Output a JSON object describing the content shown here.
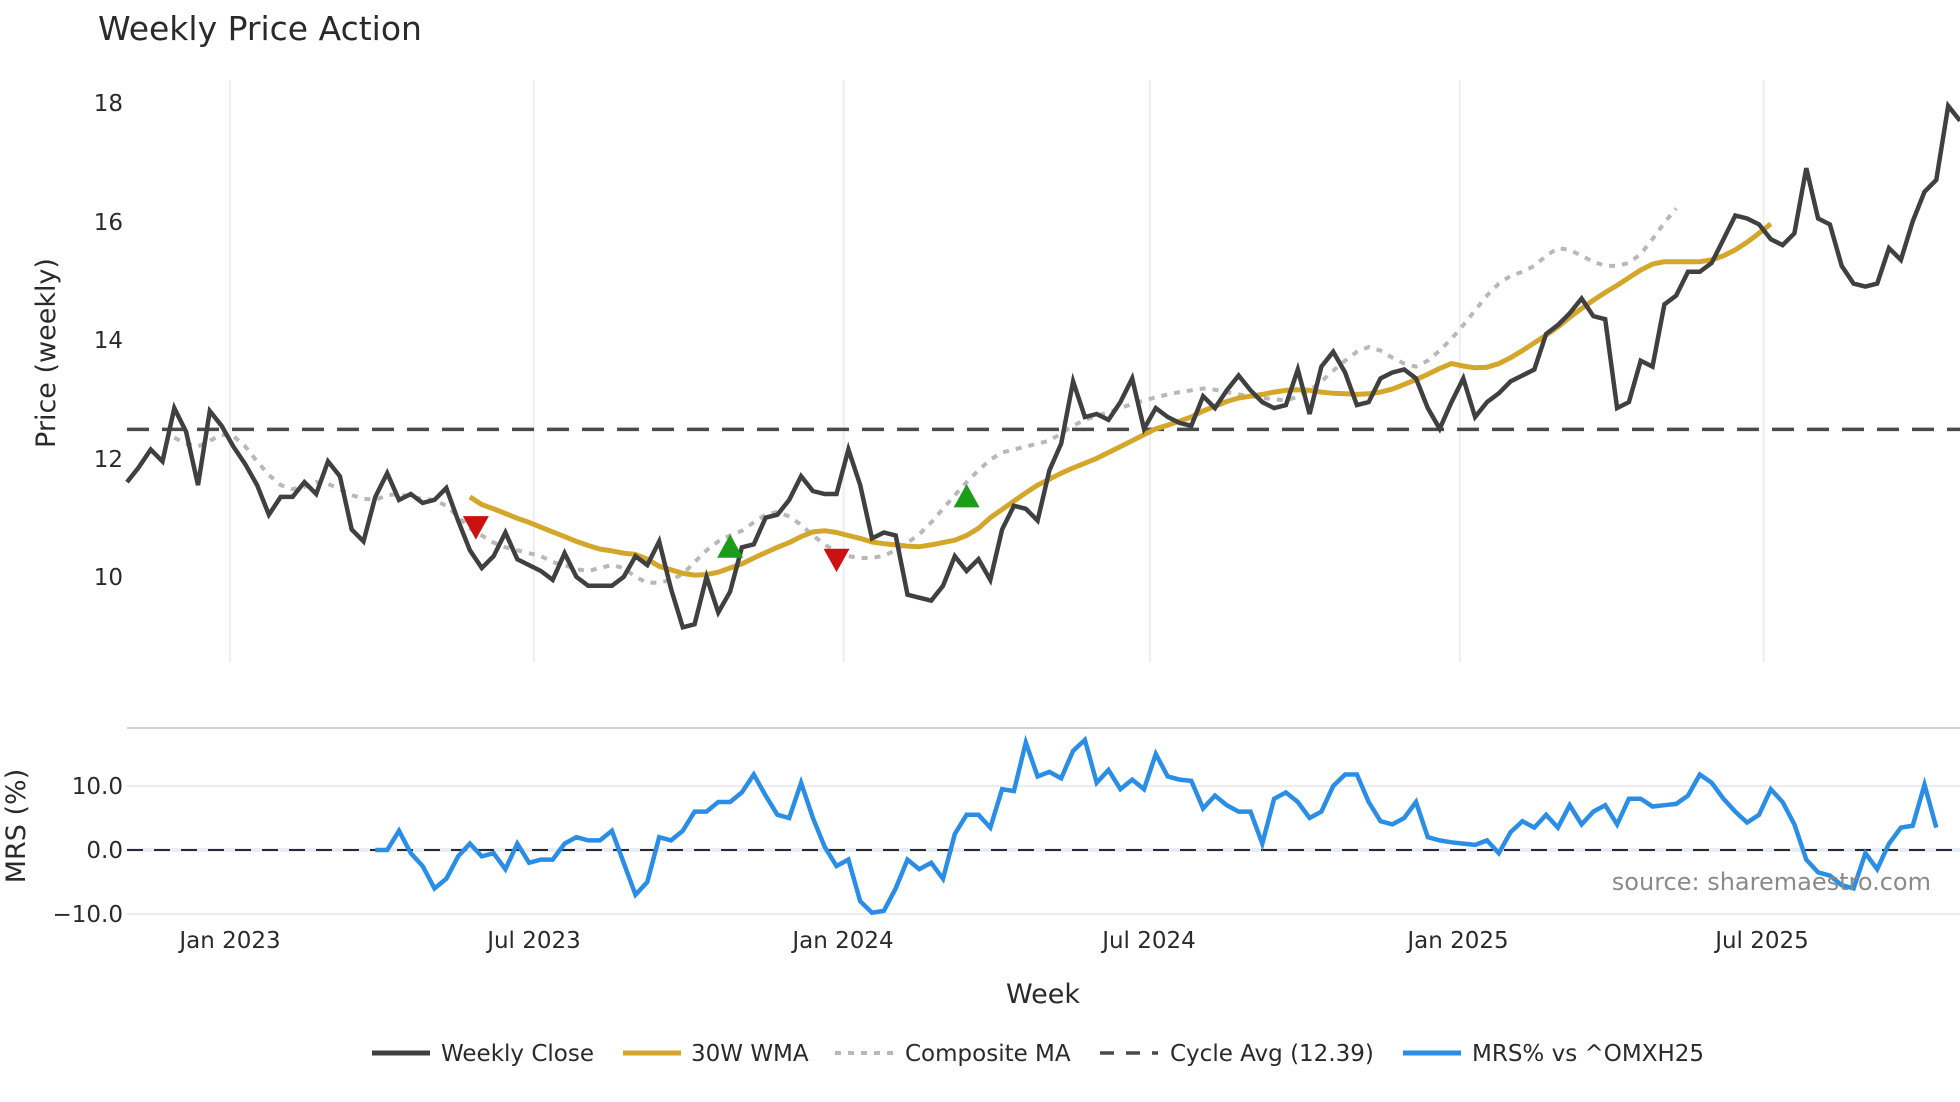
{
  "chart_data": {
    "type": "line",
    "title": "Weekly Price Action",
    "panels": [
      {
        "name": "price",
        "ylabel": "Price (weekly)",
        "ylim": [
          8.6,
          18.3
        ],
        "yticks": [
          10,
          12,
          14,
          16,
          18
        ],
        "grid": "vertical",
        "series": [
          {
            "name": "Weekly Close",
            "color": "#404040",
            "style": "solid",
            "start_week": 0,
            "values": [
              11.5,
              11.75,
              12.05,
              11.85,
              12.75,
              12.35,
              11.45,
              12.7,
              12.45,
              12.1,
              11.8,
              11.45,
              10.95,
              11.25,
              11.25,
              11.5,
              11.3,
              11.85,
              11.6,
              10.7,
              10.5,
              11.25,
              11.65,
              11.2,
              11.3,
              11.15,
              11.2,
              11.4,
              10.85,
              10.35,
              10.05,
              10.25,
              10.65,
              10.2,
              10.1,
              10.0,
              9.85,
              10.3,
              9.9,
              9.75,
              9.75,
              9.75,
              9.9,
              10.25,
              10.1,
              10.5,
              9.7,
              9.05,
              9.1,
              9.9,
              9.3,
              9.65,
              10.4,
              10.45,
              10.9,
              10.95,
              11.2,
              11.6,
              11.35,
              11.3,
              11.3,
              12.05,
              11.45,
              10.55,
              10.65,
              10.6,
              9.6,
              9.55,
              9.5,
              9.75,
              10.25,
              10.0,
              10.2,
              9.85,
              10.7,
              11.1,
              11.05,
              10.85,
              11.7,
              12.15,
              13.2,
              12.6,
              12.65,
              12.55,
              12.85,
              13.25,
              12.4,
              12.75,
              12.6,
              12.5,
              12.45,
              12.95,
              12.75,
              13.05,
              13.3,
              13.05,
              12.85,
              12.75,
              12.8,
              13.4,
              12.65,
              13.45,
              13.7,
              13.35,
              12.8,
              12.85,
              13.25,
              13.35,
              13.4,
              13.25,
              12.75,
              12.4,
              12.85,
              13.25,
              12.6,
              12.85,
              13.0,
              13.2,
              13.3,
              13.4,
              14.0,
              14.15,
              14.35,
              14.6,
              14.3,
              14.25,
              12.75,
              12.85,
              13.55,
              13.45,
              14.5,
              14.65,
              15.05,
              15.05,
              15.2,
              15.6,
              16.0,
              15.95,
              15.85,
              15.6,
              15.5,
              15.7,
              16.8,
              15.95,
              15.85,
              15.15,
              14.85,
              14.8,
              14.85,
              15.45,
              15.25,
              15.9,
              16.4,
              16.6,
              17.85,
              17.6
            ]
          },
          {
            "name": "30W WMA",
            "color": "#d4a62a",
            "style": "solid",
            "start_week": 29,
            "values": [
              11.25,
              11.12,
              11.05,
              10.97,
              10.89,
              10.82,
              10.74,
              10.66,
              10.58,
              10.5,
              10.43,
              10.37,
              10.34,
              10.3,
              10.28,
              10.2,
              10.08,
              10.02,
              9.96,
              9.93,
              9.94,
              9.98,
              10.05,
              10.12,
              10.22,
              10.31,
              10.4,
              10.48,
              10.58,
              10.66,
              10.68,
              10.65,
              10.6,
              10.55,
              10.49,
              10.46,
              10.44,
              10.42,
              10.41,
              10.44,
              10.48,
              10.52,
              10.6,
              10.72,
              10.9,
              11.04,
              11.18,
              11.32,
              11.45,
              11.55,
              11.65,
              11.74,
              11.82,
              11.9,
              12.0,
              12.1,
              12.2,
              12.3,
              12.4,
              12.46,
              12.53,
              12.6,
              12.7,
              12.78,
              12.86,
              12.92,
              12.95,
              12.98,
              13.02,
              13.05,
              13.06,
              13.05,
              13.02,
              13.0,
              12.99,
              12.98,
              12.99,
              13.02,
              13.07,
              13.15,
              13.23,
              13.32,
              13.42,
              13.5,
              13.46,
              13.43,
              13.44,
              13.5,
              13.6,
              13.72,
              13.85,
              13.98,
              14.12,
              14.28,
              14.43,
              14.57,
              14.7,
              14.82,
              14.95,
              15.08,
              15.18,
              15.22,
              15.22,
              15.22,
              15.22,
              15.25,
              15.32,
              15.42,
              15.55,
              15.7,
              15.86
            ]
          },
          {
            "name": "Composite MA",
            "color": "#b8b8b8",
            "style": "dotted",
            "start_week": 4,
            "values": [
              12.25,
              12.15,
              12.1,
              12.2,
              12.3,
              12.28,
              12.1,
              11.85,
              11.62,
              11.45,
              11.38,
              11.42,
              11.5,
              11.47,
              11.38,
              11.28,
              11.22,
              11.2,
              11.28,
              11.3,
              11.25,
              11.22,
              11.2,
              11.1,
              10.92,
              10.72,
              10.6,
              10.48,
              10.4,
              10.35,
              10.3,
              10.25,
              10.15,
              10.1,
              10.03,
              10.0,
              10.05,
              10.1,
              10.05,
              9.9,
              9.8,
              9.8,
              9.85,
              9.95,
              10.15,
              10.35,
              10.5,
              10.6,
              10.68,
              10.82,
              10.95,
              11.0,
              10.92,
              10.78,
              10.6,
              10.45,
              10.32,
              10.25,
              10.22,
              10.22,
              10.26,
              10.35,
              10.48,
              10.62,
              10.82,
              11.05,
              11.28,
              11.5,
              11.7,
              11.88,
              12.0,
              12.05,
              12.1,
              12.15,
              12.2,
              12.32,
              12.45,
              12.55,
              12.62,
              12.68,
              12.75,
              12.82,
              12.88,
              12.93,
              12.98,
              13.02,
              13.05,
              13.08,
              13.06,
              13.02,
              12.98,
              12.95,
              12.92,
              12.9,
              12.88,
              12.94,
              13.05,
              13.2,
              13.38,
              13.55,
              13.7,
              13.78,
              13.72,
              13.6,
              13.5,
              13.45,
              13.55,
              13.72,
              13.92,
              14.15,
              14.4,
              14.65,
              14.85,
              14.98,
              15.05,
              15.15,
              15.32,
              15.45,
              15.42,
              15.32,
              15.22,
              15.15,
              15.15,
              15.2,
              15.35,
              15.6,
              15.88,
              16.12
            ]
          },
          {
            "name": "Cycle Avg (12.39)",
            "color": "#4a4a4a",
            "style": "dashed",
            "value": 12.39
          }
        ],
        "markers": [
          {
            "type": "sell",
            "shape": "down-triangle",
            "color": "#cc1111",
            "week": 29.5,
            "price": 10.75
          },
          {
            "type": "buy",
            "shape": "up-triangle",
            "color": "#1a9e1a",
            "week": 51,
            "price": 10.4
          },
          {
            "type": "sell",
            "shape": "down-triangle",
            "color": "#cc1111",
            "week": 60,
            "price": 10.2
          },
          {
            "type": "buy",
            "shape": "up-triangle",
            "color": "#1a9e1a",
            "week": 71,
            "price": 11.25
          }
        ]
      },
      {
        "name": "mrs",
        "ylabel": "MRS (%)",
        "ylim": [
          -11,
          17
        ],
        "yticks": [
          -10.0,
          0.0,
          10.0
        ],
        "series": [
          {
            "name": "MRS% vs ^OMXH25",
            "color": "#2a8ee6",
            "style": "solid",
            "start_week": 21,
            "values": [
              0,
              0,
              3,
              -0.5,
              -2.5,
              -6,
              -4.5,
              -1,
              1,
              -1,
              -0.5,
              -3,
              1,
              -2,
              -1.5,
              -1.5,
              1,
              2,
              1.5,
              1.5,
              3,
              -2,
              -7,
              -5,
              2,
              1.5,
              3,
              6,
              6,
              7.5,
              7.5,
              9,
              11.8,
              8.5,
              5.5,
              5,
              10.5,
              5,
              0.5,
              -2.5,
              -1.5,
              -8,
              -9.8,
              -9.5,
              -6,
              -1.5,
              -3,
              -2,
              -4.5,
              2.5,
              5.5,
              5.5,
              3.5,
              9.5,
              9.2,
              16.8,
              11.5,
              12.2,
              11.2,
              15.5,
              17.2,
              10.5,
              12.5,
              9.5,
              11,
              9.5,
              15,
              11.5,
              11,
              10.8,
              6.5,
              8.5,
              7,
              6,
              6,
              1,
              8,
              9,
              7.5,
              5,
              6,
              10,
              11.8,
              11.8,
              7.5,
              4.5,
              4,
              5,
              7.5,
              2,
              1.5,
              1.2,
              1,
              0.8,
              1.5,
              -0.5,
              2.8,
              4.5,
              3.5,
              5.5,
              3.5,
              7,
              4,
              6,
              7,
              4,
              8,
              8,
              6.8,
              7,
              7.2,
              8.5,
              11.8,
              10.5,
              8,
              6,
              4.3,
              5.5,
              9.5,
              7.5,
              4,
              -1.5,
              -3.5,
              -4,
              -5.5,
              -6,
              -0.5,
              -3,
              1,
              3.5,
              3.8,
              10.2,
              3.5
            ]
          }
        ],
        "reference_line": {
          "value": 0,
          "style": "dashed",
          "color": "#2a2a2a"
        }
      }
    ],
    "x": {
      "xlabel": "Week",
      "tick_labels": [
        "Jan 2023",
        "Jul 2023",
        "Jan 2024",
        "Jul 2024",
        "Jan 2025",
        "Jul 2025"
      ],
      "tick_weeks": [
        8.7,
        34.4,
        60.6,
        86.5,
        112.7,
        138.4
      ],
      "total_weeks": 155
    },
    "legend": {
      "position": "bottom-center",
      "entries": [
        "Weekly Close",
        "30W WMA",
        "Composite MA",
        "Cycle Avg (12.39)",
        "MRS% vs ^OMXH25"
      ]
    },
    "annotations": [
      "source: sharemaestro.com"
    ]
  },
  "labels": {
    "title": "Weekly Price Action",
    "ylabel_price": "Price (weekly)",
    "ylabel_mrs": "MRS (%)",
    "xlabel": "Week",
    "source": "source: sharemaestro.com",
    "price_ticks": [
      "18",
      "16",
      "14",
      "12",
      "10"
    ],
    "mrs_ticks": [
      "10.0",
      "0.0",
      "−10.0"
    ],
    "x_ticks": [
      "Jan 2023",
      "Jul 2023",
      "Jan 2024",
      "Jul 2024",
      "Jan 2025",
      "Jul 2025"
    ],
    "legend": [
      "Weekly Close",
      "30W WMA",
      "Composite MA",
      "Cycle Avg (12.39)",
      "MRS% vs ^OMXH25"
    ]
  }
}
